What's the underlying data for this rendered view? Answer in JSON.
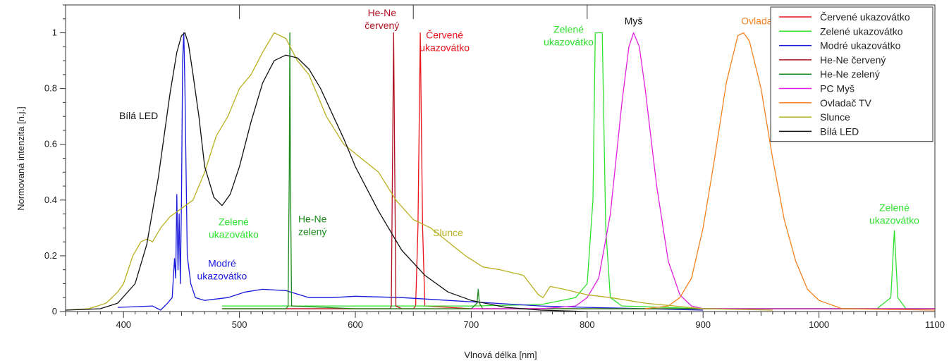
{
  "chart_data": {
    "type": "line",
    "title": "",
    "xlabel": "Vlnová délka [nm]",
    "ylabel": "Normovaná intenzita [n.j.]",
    "xlim": [
      350,
      1100
    ],
    "ylim": [
      0,
      1.1
    ],
    "x_ticks": [
      400,
      500,
      600,
      700,
      800,
      900,
      1000,
      1100
    ],
    "y_ticks": [
      0,
      0.2,
      0.4,
      0.6,
      0.8,
      1
    ],
    "grid": false,
    "legend_position": "top-right",
    "series": [
      {
        "name": "Červené ukazovátko",
        "color": "#e8141c",
        "points": [
          [
            485,
            0.01
          ],
          [
            600,
            0.01
          ],
          [
            650,
            0.01
          ],
          [
            652,
            0.02
          ],
          [
            654,
            0.3
          ],
          [
            656,
            1.0
          ],
          [
            658,
            0.3
          ],
          [
            660,
            0.02
          ],
          [
            700,
            0.01
          ],
          [
            900,
            0.01
          ],
          [
            1100,
            0.01
          ]
        ]
      },
      {
        "name": "Zelené ukazovátko",
        "color": "#2fe02f",
        "points": [
          [
            485,
            0.02
          ],
          [
            600,
            0.02
          ],
          [
            700,
            0.02
          ],
          [
            760,
            0.025
          ],
          [
            790,
            0.05
          ],
          [
            800,
            0.1
          ],
          [
            805,
            0.4
          ],
          [
            807,
            1.0
          ],
          [
            813,
            1.0
          ],
          [
            816,
            0.3
          ],
          [
            820,
            0.05
          ],
          [
            830,
            0.02
          ],
          [
            900,
            0.01
          ],
          [
            1050,
            0.01
          ],
          [
            1062,
            0.05
          ],
          [
            1065,
            0.29
          ],
          [
            1068,
            0.05
          ],
          [
            1075,
            0.01
          ],
          [
            1100,
            0.01
          ]
        ]
      },
      {
        "name": "Modré ukazovátko",
        "color": "#1a1adb",
        "points": [
          [
            395,
            0.015
          ],
          [
            425,
            0.02
          ],
          [
            432,
            0.005
          ],
          [
            438,
            0.03
          ],
          [
            442,
            0.05
          ],
          [
            444,
            0.19
          ],
          [
            445,
            0.12
          ],
          [
            446,
            0.42
          ],
          [
            447,
            0.15
          ],
          [
            448,
            0.35
          ],
          [
            449,
            0.1
          ],
          [
            450,
            0.4
          ],
          [
            451,
            0.9
          ],
          [
            452,
            1.0
          ],
          [
            453,
            0.8
          ],
          [
            455,
            0.2
          ],
          [
            458,
            0.1
          ],
          [
            462,
            0.05
          ],
          [
            470,
            0.04
          ],
          [
            490,
            0.05
          ],
          [
            505,
            0.07
          ],
          [
            520,
            0.08
          ],
          [
            540,
            0.075
          ],
          [
            560,
            0.05
          ],
          [
            580,
            0.05
          ],
          [
            600,
            0.055
          ],
          [
            640,
            0.05
          ],
          [
            680,
            0.04
          ],
          [
            720,
            0.03
          ],
          [
            760,
            0.02
          ],
          [
            800,
            0.015
          ],
          [
            850,
            0.01
          ],
          [
            900,
            0.005
          ]
        ]
      },
      {
        "name": "He-Ne červený",
        "color": "#b01020",
        "points": [
          [
            485,
            0.01
          ],
          [
            600,
            0.01
          ],
          [
            630,
            0.01
          ],
          [
            631,
            0.02
          ],
          [
            632,
            0.5
          ],
          [
            633,
            1.0
          ],
          [
            634,
            0.5
          ],
          [
            635,
            0.02
          ],
          [
            640,
            0.01
          ],
          [
            700,
            0.01
          ],
          [
            1100,
            0.01
          ]
        ]
      },
      {
        "name": "He-Ne zelený",
        "color": "#1b8a1b",
        "points": [
          [
            485,
            0.01
          ],
          [
            540,
            0.01
          ],
          [
            542,
            0.02
          ],
          [
            543,
            0.5
          ],
          [
            543.5,
            1.0
          ],
          [
            544,
            0.5
          ],
          [
            545,
            0.02
          ],
          [
            600,
            0.01
          ],
          [
            700,
            0.01
          ],
          [
            705,
            0.03
          ],
          [
            706,
            0.08
          ],
          [
            707,
            0.03
          ],
          [
            710,
            0.01
          ],
          [
            800,
            0.01
          ],
          [
            1100,
            0.01
          ]
        ]
      },
      {
        "name": "PC Myš",
        "color": "#e020e0",
        "points": [
          [
            700,
            0.01
          ],
          [
            760,
            0.01
          ],
          [
            790,
            0.02
          ],
          [
            800,
            0.05
          ],
          [
            810,
            0.12
          ],
          [
            820,
            0.35
          ],
          [
            830,
            0.75
          ],
          [
            836,
            0.95
          ],
          [
            840,
            1.0
          ],
          [
            845,
            0.95
          ],
          [
            850,
            0.8
          ],
          [
            860,
            0.45
          ],
          [
            870,
            0.18
          ],
          [
            880,
            0.06
          ],
          [
            890,
            0.02
          ],
          [
            900,
            0.01
          ],
          [
            1000,
            0.01
          ],
          [
            1100,
            0.01
          ]
        ]
      },
      {
        "name": "Ovladač TV",
        "color": "#f58220",
        "points": [
          [
            850,
            0.01
          ],
          [
            870,
            0.02
          ],
          [
            880,
            0.05
          ],
          [
            890,
            0.12
          ],
          [
            900,
            0.3
          ],
          [
            910,
            0.55
          ],
          [
            920,
            0.82
          ],
          [
            930,
            0.99
          ],
          [
            935,
            1.0
          ],
          [
            940,
            0.97
          ],
          [
            950,
            0.8
          ],
          [
            960,
            0.55
          ],
          [
            970,
            0.33
          ],
          [
            980,
            0.18
          ],
          [
            990,
            0.08
          ],
          [
            1000,
            0.04
          ],
          [
            1020,
            0.01
          ],
          [
            1100,
            0.005
          ]
        ]
      },
      {
        "name": "Slunce",
        "color": "#b8b020",
        "points": [
          [
            350,
            0.005
          ],
          [
            370,
            0.01
          ],
          [
            385,
            0.03
          ],
          [
            395,
            0.07
          ],
          [
            400,
            0.1
          ],
          [
            408,
            0.2
          ],
          [
            415,
            0.25
          ],
          [
            420,
            0.26
          ],
          [
            425,
            0.25
          ],
          [
            432,
            0.3
          ],
          [
            440,
            0.34
          ],
          [
            450,
            0.37
          ],
          [
            460,
            0.4
          ],
          [
            470,
            0.5
          ],
          [
            480,
            0.63
          ],
          [
            490,
            0.7
          ],
          [
            500,
            0.8
          ],
          [
            510,
            0.85
          ],
          [
            520,
            0.93
          ],
          [
            530,
            1.0
          ],
          [
            540,
            0.98
          ],
          [
            550,
            0.9
          ],
          [
            560,
            0.85
          ],
          [
            575,
            0.7
          ],
          [
            590,
            0.6
          ],
          [
            605,
            0.55
          ],
          [
            620,
            0.5
          ],
          [
            635,
            0.4
          ],
          [
            650,
            0.33
          ],
          [
            665,
            0.3
          ],
          [
            680,
            0.25
          ],
          [
            695,
            0.2
          ],
          [
            710,
            0.16
          ],
          [
            725,
            0.15
          ],
          [
            745,
            0.13
          ],
          [
            758,
            0.06
          ],
          [
            762,
            0.05
          ],
          [
            768,
            0.09
          ],
          [
            780,
            0.08
          ],
          [
            800,
            0.06
          ],
          [
            820,
            0.05
          ],
          [
            850,
            0.03
          ],
          [
            900,
            0.01
          ],
          [
            960,
            0.005
          ]
        ]
      },
      {
        "name": "Bílá LED",
        "color": "#111111",
        "points": [
          [
            350,
            0.005
          ],
          [
            380,
            0.01
          ],
          [
            395,
            0.03
          ],
          [
            410,
            0.1
          ],
          [
            420,
            0.24
          ],
          [
            430,
            0.48
          ],
          [
            440,
            0.78
          ],
          [
            446,
            0.93
          ],
          [
            450,
            0.99
          ],
          [
            453,
            1.0
          ],
          [
            456,
            0.96
          ],
          [
            460,
            0.85
          ],
          [
            465,
            0.7
          ],
          [
            470,
            0.52
          ],
          [
            478,
            0.41
          ],
          [
            485,
            0.38
          ],
          [
            492,
            0.42
          ],
          [
            500,
            0.52
          ],
          [
            510,
            0.68
          ],
          [
            520,
            0.82
          ],
          [
            530,
            0.9
          ],
          [
            540,
            0.92
          ],
          [
            550,
            0.91
          ],
          [
            560,
            0.87
          ],
          [
            570,
            0.8
          ],
          [
            580,
            0.71
          ],
          [
            590,
            0.62
          ],
          [
            600,
            0.52
          ],
          [
            620,
            0.36
          ],
          [
            640,
            0.22
          ],
          [
            660,
            0.13
          ],
          [
            680,
            0.07
          ],
          [
            700,
            0.04
          ],
          [
            730,
            0.015
          ],
          [
            760,
            0.005
          ],
          [
            800,
            0.0
          ]
        ]
      }
    ],
    "annotations": [
      {
        "lines": [
          "Bílá LED"
        ],
        "x": 413,
        "y": 0.69,
        "color": "#111111"
      },
      {
        "lines": [
          "Modré",
          "ukazovátko"
        ],
        "x": 485,
        "y": 0.16,
        "color": "#1a1adb"
      },
      {
        "lines": [
          "Zelené",
          "ukazovátko"
        ],
        "x": 495,
        "y": 0.31,
        "color": "#2fe02f"
      },
      {
        "lines": [
          "He-Ne",
          "zelený"
        ],
        "x": 563,
        "y": 0.32,
        "color": "#1b8a1b"
      },
      {
        "lines": [
          "He-Ne",
          "červený"
        ],
        "x": 623,
        "y": 1.06,
        "color": "#b01020"
      },
      {
        "lines": [
          "Červené",
          "ukazovátko"
        ],
        "x": 677,
        "y": 0.98,
        "color": "#e8141c"
      },
      {
        "lines": [
          "Slunce"
        ],
        "x": 680,
        "y": 0.27,
        "color": "#b8b020"
      },
      {
        "lines": [
          "Zelené",
          "ukazovátko"
        ],
        "x": 784,
        "y": 1.0,
        "color": "#2fe02f"
      },
      {
        "lines": [
          "Myš"
        ],
        "x": 840,
        "y": 1.03,
        "color": "#111111"
      },
      {
        "lines": [
          "Ovladač TV"
        ],
        "x": 955,
        "y": 1.03,
        "color": "#f58220"
      },
      {
        "lines": [
          "Zelené",
          "ukazovátko"
        ],
        "x": 1065,
        "y": 0.36,
        "color": "#2fe02f"
      }
    ]
  }
}
